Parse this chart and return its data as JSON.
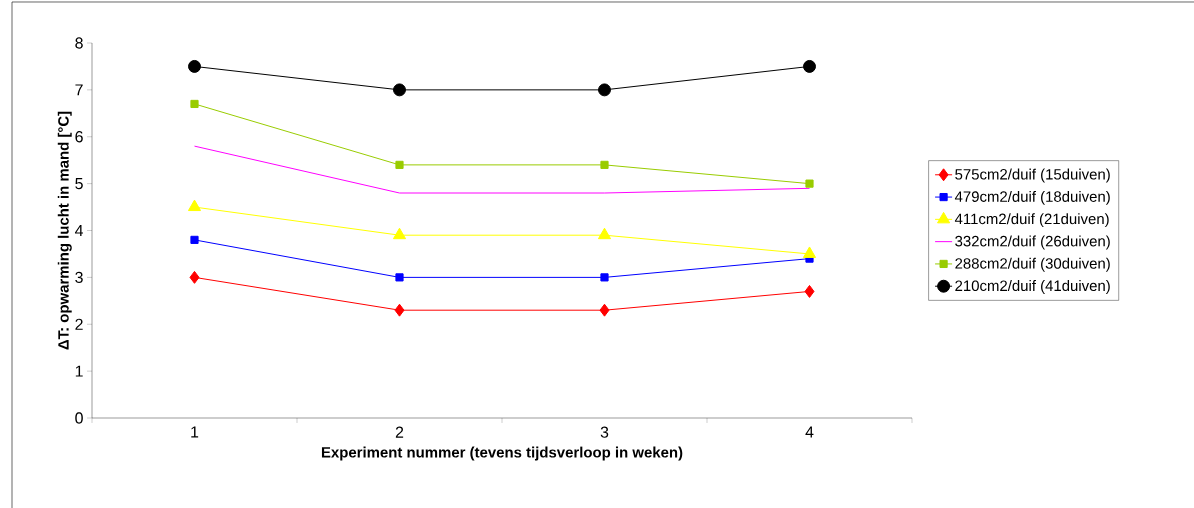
{
  "chart_data": {
    "type": "line",
    "xlabel": "Experiment nummer (tevens tijdsverloop in weken)",
    "ylabel": "ΔT: opwarming lucht in mand [°C]",
    "categories": [
      "1",
      "2",
      "3",
      "4"
    ],
    "ylim": [
      0,
      8
    ],
    "yticks": [
      0,
      1,
      2,
      3,
      4,
      5,
      6,
      7,
      8
    ],
    "grid": false,
    "legend": "right",
    "series": [
      {
        "name": "575cm2/duif (15duiven)",
        "color": "#ff0000",
        "marker": "diamond",
        "values": [
          3.0,
          2.3,
          2.3,
          2.7
        ]
      },
      {
        "name": "479cm2/duif (18duiven)",
        "color": "#0000ff",
        "marker": "square",
        "values": [
          3.8,
          3.0,
          3.0,
          3.4
        ]
      },
      {
        "name": "411cm2/duif (21duiven)",
        "color": "#ffff00",
        "marker": "triangle",
        "values": [
          4.5,
          3.9,
          3.9,
          3.5
        ]
      },
      {
        "name": "332cm2/duif (26duiven)",
        "color": "#ff00ff",
        "marker": "none",
        "values": [
          5.8,
          4.8,
          4.8,
          4.9
        ]
      },
      {
        "name": "288cm2/duif (30duiven)",
        "color": "#99cc00",
        "marker": "square",
        "values": [
          6.7,
          5.4,
          5.4,
          5.0
        ]
      },
      {
        "name": "210cm2/duif (41duiven)",
        "color": "#000000",
        "marker": "circle",
        "values": [
          7.5,
          7.0,
          7.0,
          7.5
        ]
      }
    ]
  }
}
